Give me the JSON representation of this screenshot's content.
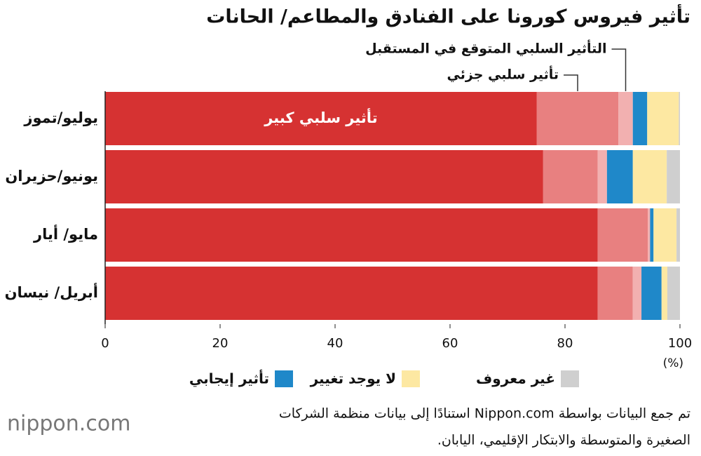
{
  "chart_data": {
    "type": "stacked-barh",
    "title": "تأثير فيروس كورونا على الفنادق والمطاعم/ الحانات",
    "categories": [
      "يوليو/تموز",
      "يونيو/حزيران",
      "مايو/ أيار",
      "أبريل/ نيسان"
    ],
    "series": [
      {
        "name": "تأثير سلبي كبير",
        "color": "#d63232",
        "values": [
          75.1,
          76.2,
          85.7,
          85.7
        ]
      },
      {
        "name": "تأثير سلبي جزئي",
        "color": "#e88080",
        "values": [
          14.2,
          9.5,
          8.7,
          6.1
        ]
      },
      {
        "name": "التأثير السلبي المتوقع في المستقبل",
        "color": "#f2b0b0",
        "values": [
          2.5,
          1.6,
          0.4,
          1.5
        ]
      },
      {
        "name": "تأثير إيجابي",
        "color": "#1f88c9",
        "values": [
          2.5,
          4.5,
          0.6,
          3.5
        ]
      },
      {
        "name": "لا يوجد تغيير",
        "color": "#fde8a2",
        "values": [
          5.5,
          5.9,
          4.0,
          1.0
        ]
      },
      {
        "name": "غير معروف",
        "color": "#cfcfcf",
        "values": [
          0.2,
          2.3,
          0.6,
          2.2
        ]
      }
    ],
    "xlim": [
      0,
      100
    ],
    "xticks": [
      0,
      20,
      40,
      60,
      80,
      100
    ],
    "x_unit": "(%)",
    "source": [
      "تم جمع البيانات بواسطة Nippon.com استنادًا إلى بيانات منظمة الشركات",
      "الصغيرة والمتوسطة والابتكار الإقليمي، اليابان."
    ],
    "logo": "nippon.com"
  }
}
